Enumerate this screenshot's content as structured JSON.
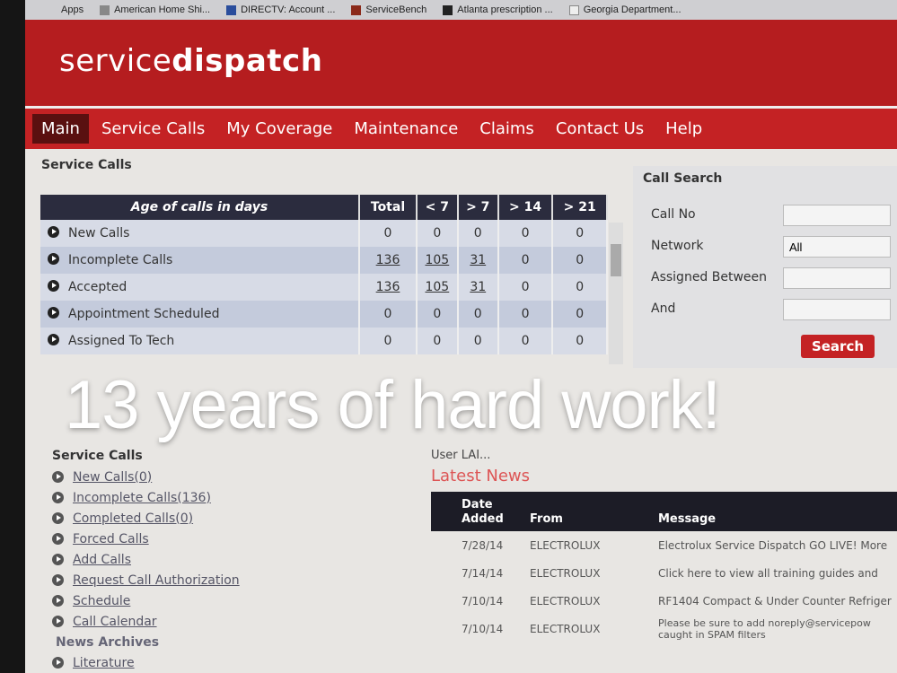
{
  "bookmarks": [
    "Apps",
    "American Home Shi...",
    "DIRECTV: Account ...",
    "ServiceBench",
    "Atlanta prescription ...",
    "Georgia Department..."
  ],
  "logo": {
    "light": "service",
    "bold": "dispatch"
  },
  "nav": [
    "Main",
    "Service Calls",
    "My Coverage",
    "Maintenance",
    "Claims",
    "Contact Us",
    "Help"
  ],
  "calls_section": {
    "title": "Service Calls",
    "headers": [
      "Age of calls in days",
      "Total",
      "< 7",
      "> 7",
      "> 14",
      "> 21"
    ],
    "rows": [
      {
        "label": "New Calls",
        "values": [
          "0",
          "0",
          "0",
          "0",
          "0"
        ]
      },
      {
        "label": "Incomplete Calls",
        "values": [
          "136",
          "105",
          "31",
          "0",
          "0"
        ]
      },
      {
        "label": "Accepted",
        "values": [
          "136",
          "105",
          "31",
          "0",
          "0"
        ]
      },
      {
        "label": "Appointment Scheduled",
        "values": [
          "0",
          "0",
          "0",
          "0",
          "0"
        ]
      },
      {
        "label": "Assigned To Tech",
        "values": [
          "0",
          "0",
          "0",
          "0",
          "0"
        ]
      }
    ]
  },
  "call_search": {
    "title": "Call Search",
    "call_no": "Call No",
    "network": "Network",
    "network_value": "All",
    "assigned_between": "Assigned Between",
    "and": "And",
    "search": "Search"
  },
  "side": {
    "title": "Service Calls",
    "links": [
      "New Calls(0)",
      "Incomplete Calls(136)",
      "Completed Calls(0)",
      "Forced Calls",
      "Add Calls",
      "Request Call Authorization",
      "Schedule",
      "Call Calendar"
    ],
    "archives": "News Archives",
    "literature": "Literature"
  },
  "user": "User LAI...",
  "news": {
    "title": "Latest News",
    "headers": [
      "Date Added",
      "From",
      "Message"
    ],
    "rows": [
      {
        "date": "7/28/14",
        "from": "ELECTROLUX",
        "msg": "Electrolux Service Dispatch GO LIVE! More"
      },
      {
        "date": "7/14/14",
        "from": "ELECTROLUX",
        "msg": "Click here to view all training guides and"
      },
      {
        "date": "7/10/14",
        "from": "ELECTROLUX",
        "msg": "RF1404 Compact & Under Counter Refriger"
      },
      {
        "date": "7/10/14",
        "from": "ELECTROLUX",
        "msg": "Please be sure to add noreply@servicepow caught in SPAM filters"
      }
    ]
  },
  "overlay": "13 years of hard work!"
}
